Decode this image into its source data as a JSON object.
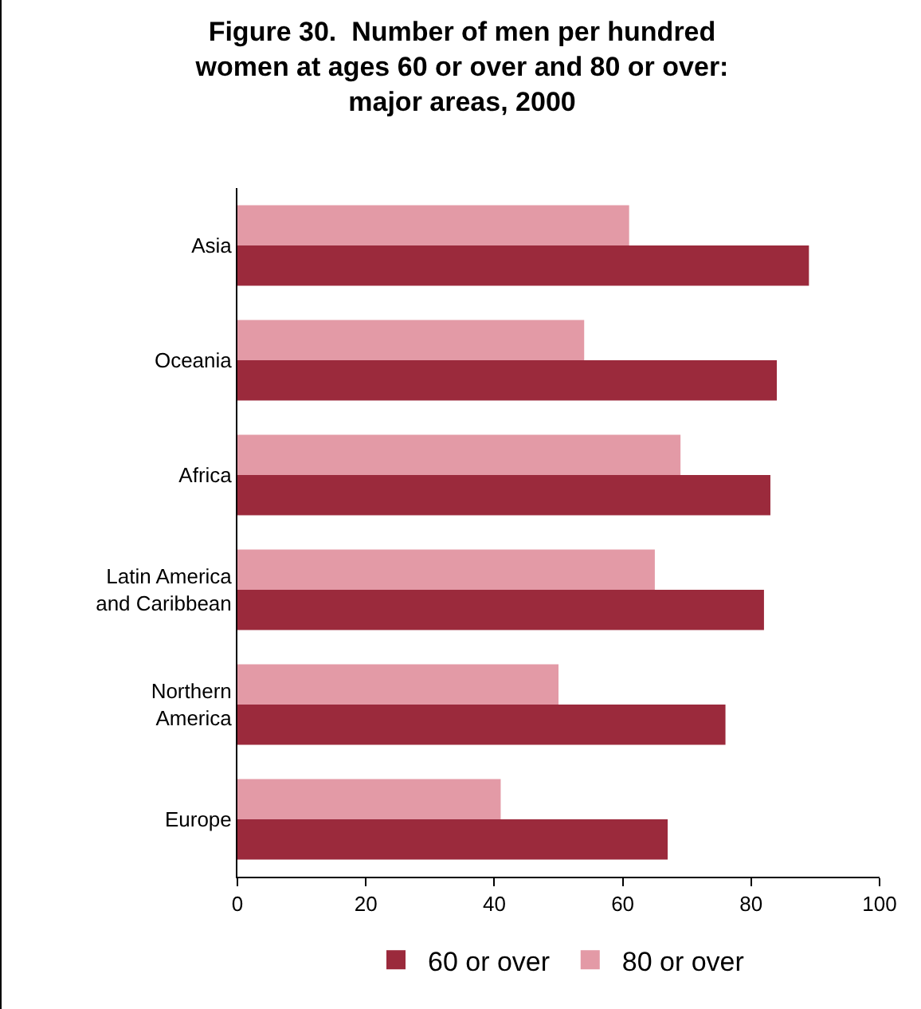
{
  "chart_data": {
    "type": "bar",
    "orientation": "horizontal",
    "title": "Figure 30.  Number of men per hundred\nwomen at ages 60 or over and 80 or over:\nmajor areas, 2000",
    "categories": [
      "Asia",
      "Oceania",
      "Africa",
      "Latin America\nand Caribbean",
      "Northern\nAmerica",
      "Europe"
    ],
    "series": [
      {
        "name": "60 or over",
        "color": "#9b2a3c",
        "values": [
          89,
          84,
          83,
          82,
          76,
          67
        ]
      },
      {
        "name": "80 or over",
        "color": "#e39aa6",
        "values": [
          61,
          54,
          69,
          65,
          50,
          41
        ]
      }
    ],
    "xlim": [
      0,
      100
    ],
    "xticks": [
      0,
      20,
      40,
      60,
      80,
      100
    ],
    "grid": false,
    "legend": "bottom"
  }
}
